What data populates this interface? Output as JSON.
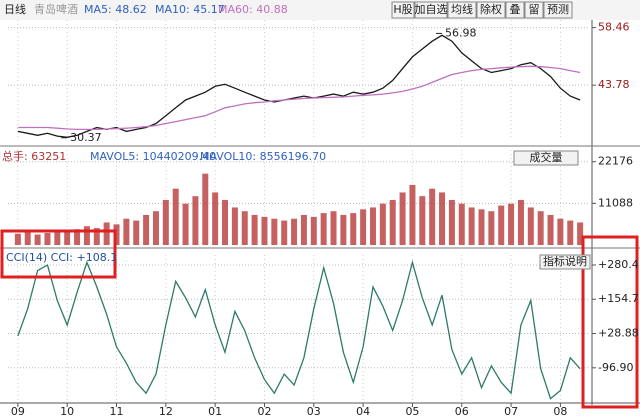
{
  "toolbar": {
    "period": "日线",
    "stock": "青岛啤酒",
    "readouts": [
      "MA10: 45.17"
    ],
    "buttons": [
      "H股",
      "加自选",
      "均线",
      "除权",
      "叠",
      "留",
      "预测"
    ]
  },
  "chart_data": [
    {
      "type": "line",
      "xlim": [
        -0.2,
        11.6
      ],
      "ylim": [
        29.8,
        60.4
      ],
      "yticks": [
        43.78,
        58.46
      ],
      "grid": true,
      "x": [
        0,
        0.2,
        0.4,
        0.6,
        0.8,
        1,
        1.2,
        1.4,
        1.6,
        1.8,
        2,
        2.2,
        2.4,
        2.6,
        2.8,
        3,
        3.2,
        3.4,
        3.6,
        3.8,
        4,
        4.2,
        4.4,
        4.6,
        4.8,
        5,
        5.2,
        5.4,
        5.6,
        5.8,
        6,
        6.2,
        6.4,
        6.6,
        6.8,
        7,
        7.2,
        7.4,
        7.6,
        7.8,
        8,
        8.2,
        8.4,
        8.6,
        8.8,
        9,
        9.2,
        9.4,
        9.6,
        9.8,
        10,
        10.2,
        10.4,
        10.6,
        10.8,
        11,
        11.2,
        11.4
      ],
      "series": [
        {
          "name": "MA5: 48.62",
          "color": "#1a1a1a",
          "values": [
            32,
            31.5,
            31,
            31.5,
            30.8,
            30.5,
            31,
            32,
            33,
            32.5,
            33,
            32,
            32.5,
            33,
            34,
            36,
            38,
            40,
            41,
            42,
            43.5,
            44,
            43,
            42,
            41,
            40,
            39.5,
            40,
            40.5,
            41,
            40.5,
            41,
            41.5,
            41,
            42,
            41.5,
            42,
            43,
            45,
            48,
            51,
            53,
            55,
            56.5,
            55,
            52,
            50,
            48,
            47,
            47.5,
            48,
            49,
            49.5,
            48,
            46,
            43,
            41,
            40
          ]
        },
        {
          "name": "MA60: 40.88",
          "color": "#c070c0",
          "values": [
            33,
            33,
            33,
            33,
            32.8,
            32.6,
            32.5,
            32.5,
            32.5,
            32.6,
            32.7,
            32.8,
            33,
            33.2,
            33.5,
            34,
            34.5,
            35,
            35.5,
            36,
            37,
            38,
            38.5,
            39,
            39.3,
            39.5,
            39.8,
            40,
            40.2,
            40.4,
            40.5,
            40.6,
            40.7,
            40.8,
            41,
            41.2,
            41.3,
            41.5,
            41.8,
            42.2,
            42.8,
            43.5,
            44.5,
            45.5,
            46.5,
            47,
            47.5,
            47.8,
            48,
            48.2,
            48.4,
            48.5,
            48.6,
            48.5,
            48.3,
            48,
            47.5,
            47
          ]
        }
      ],
      "annotations": [
        {
          "x": 8.6,
          "value": 56.98
        },
        {
          "x": 1.0,
          "value": 30.37
        }
      ]
    },
    {
      "type": "bar",
      "xlim": [
        -0.2,
        11.6
      ],
      "ylim": [
        0,
        25300
      ],
      "yticks": [
        11088,
        22176
      ],
      "grid": true,
      "button": "成交量",
      "readouts": [
        "MAVOL5: 10440209.40",
        "MAVOL10: 8556196.70"
      ],
      "x": [
        0,
        0.2,
        0.4,
        0.6,
        0.8,
        1,
        1.2,
        1.4,
        1.6,
        1.8,
        2,
        2.2,
        2.4,
        2.6,
        2.8,
        3,
        3.2,
        3.4,
        3.6,
        3.8,
        4,
        4.2,
        4.4,
        4.6,
        4.8,
        5,
        5.2,
        5.4,
        5.6,
        5.8,
        6,
        6.2,
        6.4,
        6.6,
        6.8,
        7,
        7.2,
        7.4,
        7.6,
        7.8,
        8,
        8.2,
        8.4,
        8.6,
        8.8,
        9,
        9.2,
        9.4,
        9.6,
        9.8,
        10,
        10.2,
        10.4,
        10.6,
        10.8,
        11,
        11.2,
        11.4
      ],
      "series": [
        {
          "name": "总手: 63251",
          "color": "#b83a3a",
          "values": [
            3000,
            3500,
            2800,
            3200,
            4000,
            3800,
            4200,
            5000,
            4500,
            6000,
            5500,
            7000,
            6500,
            8000,
            9000,
            12000,
            15000,
            11000,
            13000,
            19000,
            14000,
            12000,
            10000,
            9000,
            8000,
            7500,
            7000,
            6500,
            7000,
            8000,
            7500,
            8500,
            9000,
            8000,
            8500,
            9500,
            10000,
            11000,
            12000,
            14000,
            16000,
            13000,
            15000,
            14000,
            12000,
            11000,
            10000,
            9500,
            9000,
            10500,
            11000,
            12000,
            10000,
            9000,
            8000,
            7000,
            6500,
            6000
          ]
        }
      ]
    },
    {
      "type": "line",
      "xlim": [
        -0.2,
        11.6
      ],
      "ylim": [
        -215,
        317
      ],
      "grid": true,
      "button": "指标说明",
      "yticks": [
        {
          "value": 280.4,
          "label": "+280.4"
        },
        {
          "value": 154.7,
          "label": "+154.7"
        },
        {
          "value": 28.88,
          "label": "+28.88"
        },
        {
          "value": -96.9,
          "label": "-96.90"
        }
      ],
      "xticks": [
        {
          "value": 0,
          "label": "09"
        },
        {
          "value": 1,
          "label": "10"
        },
        {
          "value": 2,
          "label": "11"
        },
        {
          "value": 3,
          "label": "12"
        },
        {
          "value": 4,
          "label": "01"
        },
        {
          "value": 5,
          "label": "02"
        },
        {
          "value": 6,
          "label": "03"
        },
        {
          "value": 7,
          "label": "04"
        },
        {
          "value": 8,
          "label": "05"
        },
        {
          "value": 9,
          "label": "06"
        },
        {
          "value": 10,
          "label": "07"
        },
        {
          "value": 11,
          "label": "08"
        }
      ],
      "x": [
        0,
        0.2,
        0.4,
        0.6,
        0.8,
        1,
        1.2,
        1.4,
        1.6,
        1.8,
        2,
        2.2,
        2.4,
        2.6,
        2.8,
        3,
        3.2,
        3.4,
        3.6,
        3.8,
        4,
        4.2,
        4.4,
        4.6,
        4.8,
        5,
        5.2,
        5.4,
        5.6,
        5.8,
        6,
        6.2,
        6.4,
        6.6,
        6.8,
        7,
        7.2,
        7.4,
        7.6,
        7.8,
        8,
        8.2,
        8.4,
        8.6,
        8.8,
        9,
        9.2,
        9.4,
        9.6,
        9.8,
        10,
        10.2,
        10.4,
        10.6,
        10.8,
        11,
        11.2,
        11.4
      ],
      "series": [
        {
          "name": "CCI(14) CCI: +108.1",
          "color": "#2e7a6a",
          "values": [
            20,
            120,
            260,
            280,
            150,
            60,
            180,
            290,
            200,
            100,
            -20,
            -80,
            -150,
            -190,
            -120,
            60,
            220,
            160,
            90,
            190,
            60,
            -40,
            110,
            40,
            -60,
            -140,
            -190,
            -120,
            -160,
            -60,
            120,
            270,
            140,
            -40,
            -150,
            -20,
            200,
            130,
            40,
            150,
            290,
            160,
            60,
            170,
            -30,
            -120,
            -60,
            -170,
            -90,
            -150,
            -190,
            60,
            150,
            -100,
            -210,
            -180,
            -60,
            -100
          ]
        }
      ]
    }
  ]
}
